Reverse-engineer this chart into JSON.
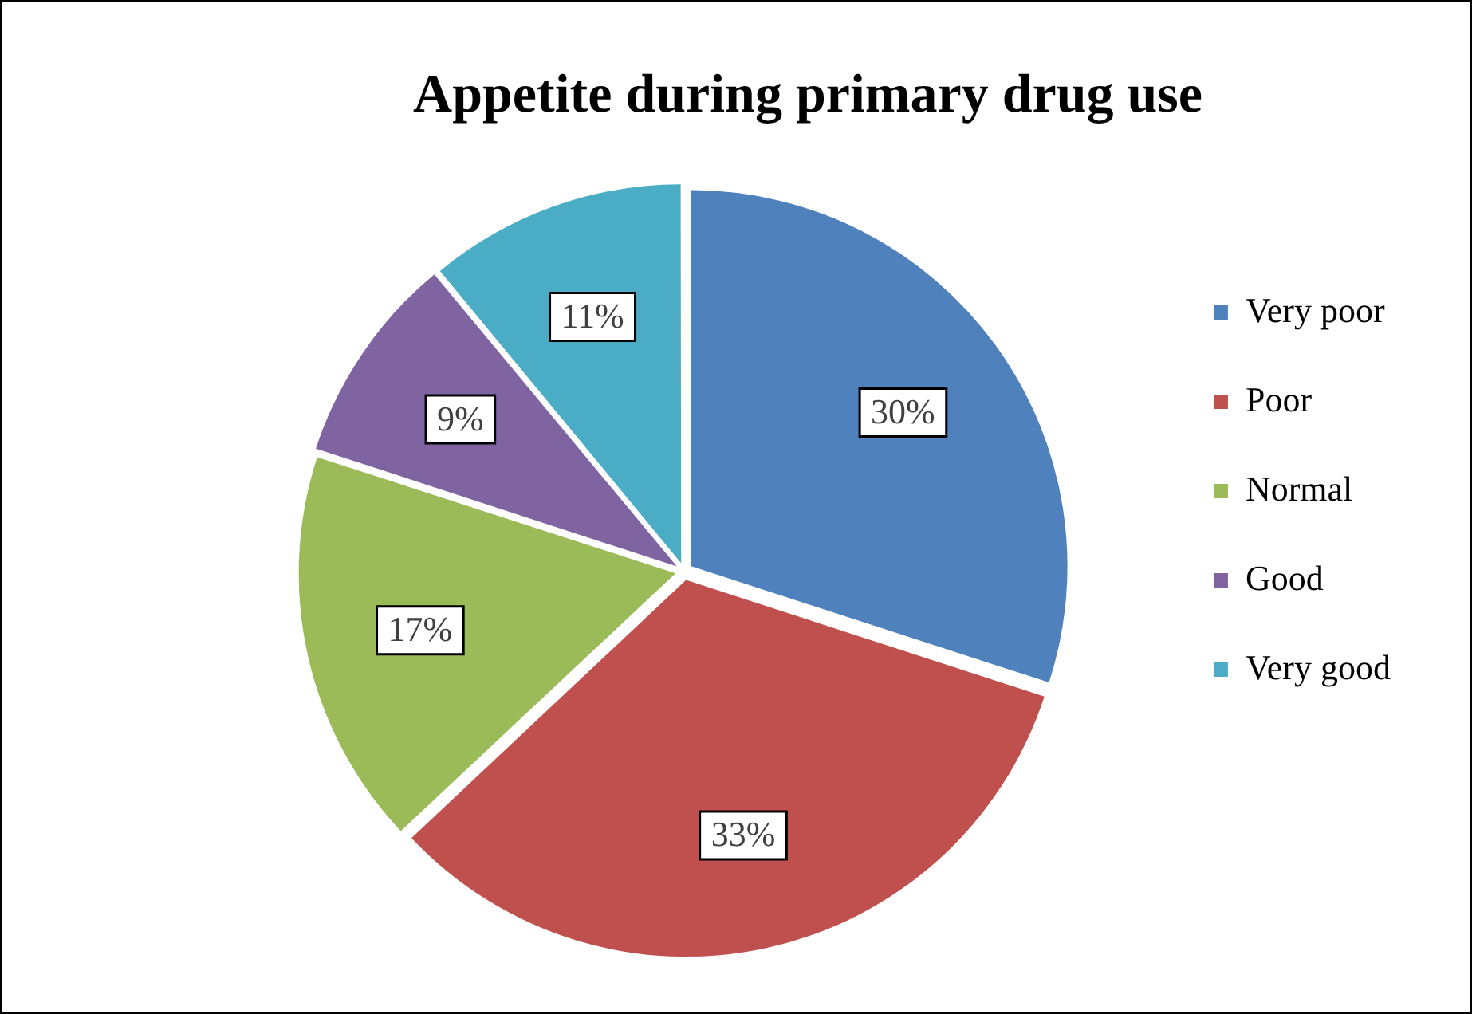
{
  "chart_data": {
    "type": "pie",
    "title": "Appetite during primary drug use",
    "categories": [
      "Very poor",
      "Poor",
      "Normal",
      "Good",
      "Very good"
    ],
    "values": [
      30,
      33,
      17,
      9,
      11
    ],
    "value_labels": [
      "30%",
      "33%",
      "17%",
      "9%",
      "11%"
    ],
    "colors": [
      "#4f81bd",
      "#c0504d",
      "#9bbb59",
      "#8064a2",
      "#4bacc6"
    ],
    "legend": "right"
  }
}
